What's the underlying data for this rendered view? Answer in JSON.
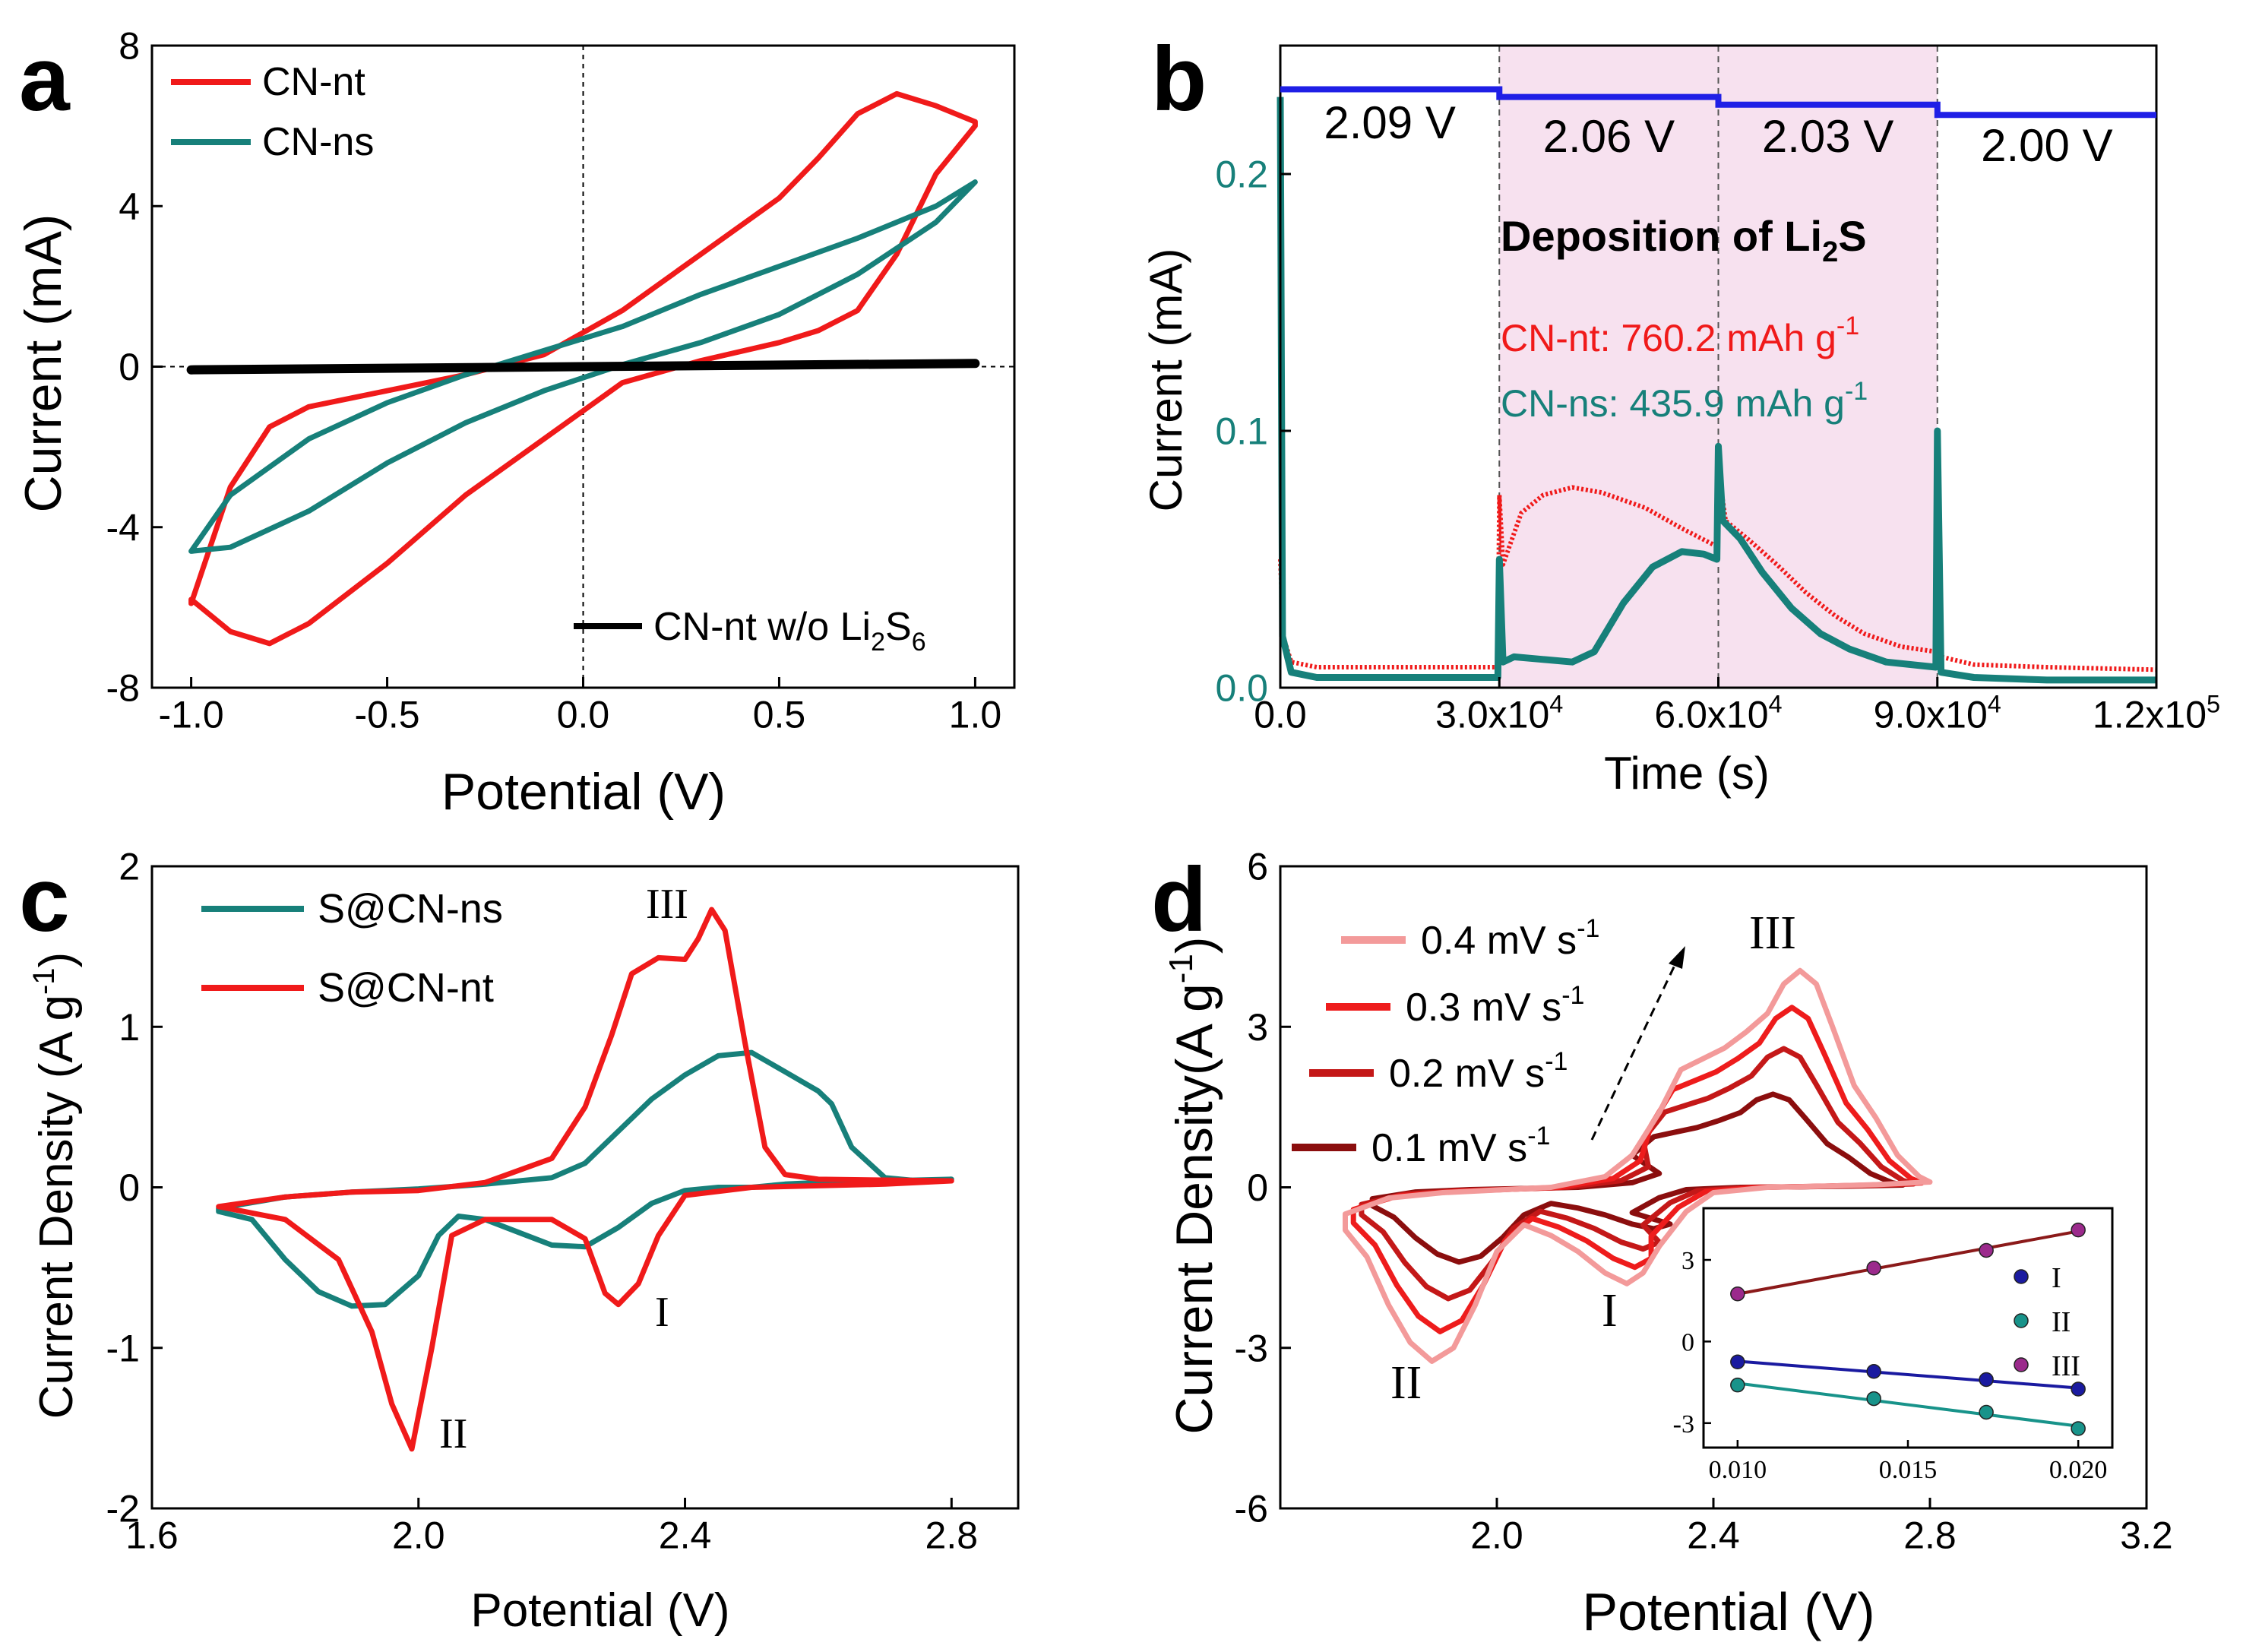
{
  "colors": {
    "red": "#f01a1a",
    "teal": "#17807a",
    "black": "#000000",
    "blue": "#1f1fe6",
    "pink_band": "#f7e1ef",
    "teal_text": "#17807a",
    "red_text": "#f01a1a",
    "scan04": "#f39a9a",
    "scan03": "#ee1c1c",
    "scan02": "#c41818",
    "scan01": "#8b0e0e",
    "inset_I": "#1a1aa0",
    "inset_II": "#18938a",
    "inset_III": "#9b2a8c",
    "inset_line_III": "#8b1a1a"
  },
  "chart_data": [
    {
      "panel": "a",
      "type": "line",
      "xlabel": "Potential (V)",
      "ylabel": "Current (mA)",
      "xlim": [
        -1.1,
        1.1
      ],
      "ylim": [
        -8,
        8
      ],
      "xticks": [
        -1.0,
        -0.5,
        0.0,
        0.5,
        1.0
      ],
      "xtick_labels": [
        "-1.0",
        "-0.5",
        "0.0",
        "0.5",
        "1.0"
      ],
      "yticks": [
        -8,
        -4,
        0,
        4,
        8
      ],
      "ytick_labels": [
        "-8",
        "-4",
        "0",
        "4",
        "8"
      ],
      "series": [
        {
          "name": "CN-nt",
          "color": "red",
          "closed": true,
          "x": [
            -1.0,
            -0.9,
            -0.8,
            -0.7,
            -0.5,
            -0.3,
            -0.1,
            0.1,
            0.3,
            0.5,
            0.6,
            0.7,
            0.8,
            0.9,
            1.0,
            1.0,
            0.9,
            0.8,
            0.7,
            0.6,
            0.5,
            0.3,
            0.1,
            -0.1,
            -0.3,
            -0.5,
            -0.7,
            -0.8,
            -0.9,
            -1.0
          ],
          "y": [
            -5.8,
            -6.6,
            -6.9,
            -6.4,
            -4.9,
            -3.2,
            -1.8,
            -0.4,
            0.15,
            0.6,
            0.9,
            1.4,
            2.8,
            4.8,
            6.0,
            6.1,
            6.5,
            6.8,
            6.3,
            5.2,
            4.2,
            2.8,
            1.4,
            0.3,
            -0.2,
            -0.6,
            -1.0,
            -1.5,
            -3.0,
            -5.9
          ]
        },
        {
          "name": "CN-ns",
          "color": "teal",
          "closed": true,
          "x": [
            -1.0,
            -0.9,
            -0.7,
            -0.5,
            -0.3,
            -0.1,
            0.1,
            0.3,
            0.5,
            0.7,
            0.9,
            1.0,
            0.9,
            0.7,
            0.5,
            0.3,
            0.1,
            -0.1,
            -0.3,
            -0.5,
            -0.7,
            -0.9,
            -1.0
          ],
          "y": [
            -4.6,
            -4.5,
            -3.6,
            -2.4,
            -1.4,
            -0.6,
            0.05,
            0.6,
            1.3,
            2.3,
            3.6,
            4.6,
            4.0,
            3.2,
            2.5,
            1.8,
            1.0,
            0.4,
            -0.2,
            -0.9,
            -1.8,
            -3.2,
            -4.6
          ]
        },
        {
          "name": "CN-nt w/o Li2S6",
          "color": "black",
          "closed": false,
          "x": [
            -1.0,
            0.0,
            1.0
          ],
          "y": [
            -0.08,
            0.0,
            0.08
          ]
        }
      ],
      "legend": {
        "entries": [
          "CN-nt",
          "CN-ns"
        ],
        "position": "top-left"
      },
      "annotation": {
        "main": "CN-nt w/o Li",
        "sub1": "2",
        "mid": "S",
        "sub2": "6"
      }
    },
    {
      "panel": "b",
      "type": "line",
      "xlabel": "Time (s)",
      "ylabel": "Current (mA)",
      "xlim": [
        0,
        120000
      ],
      "ylim": [
        0,
        0.25
      ],
      "xticks": [
        0,
        30000,
        60000,
        90000,
        120000
      ],
      "xtick_labels": [
        {
          "base": "0.0",
          "exp": ""
        },
        {
          "base": "3.0x10",
          "exp": "4"
        },
        {
          "base": "6.0x10",
          "exp": "4"
        },
        {
          "base": "9.0x10",
          "exp": "4"
        },
        {
          "base": "1.2x10",
          "exp": "5"
        }
      ],
      "yticks": [
        0.0,
        0.1,
        0.2
      ],
      "ytick_labels": [
        "0.0",
        "0.1",
        "0.2"
      ],
      "voltage_steps": [
        "2.09 V",
        "2.06 V",
        "2.03 V",
        "2.00 V"
      ],
      "voltage_level_y": [
        0.233,
        0.23,
        0.227,
        0.223
      ],
      "step_boundaries": [
        30000,
        60000,
        90000
      ],
      "shaded_range": [
        30000,
        90000
      ],
      "series": [
        {
          "name": "CN-nt",
          "color": "red",
          "x": [
            0,
            400,
            1500,
            5000,
            29800,
            30000,
            30500,
            33000,
            36000,
            40000,
            44000,
            50000,
            55000,
            59800,
            60000,
            61000,
            64000,
            68000,
            72000,
            76000,
            80000,
            85000,
            89800,
            90000,
            90500,
            95000,
            105000,
            120000
          ],
          "y": [
            0.05,
            0.02,
            0.01,
            0.008,
            0.008,
            0.075,
            0.048,
            0.068,
            0.075,
            0.078,
            0.076,
            0.07,
            0.062,
            0.055,
            0.085,
            0.065,
            0.058,
            0.048,
            0.037,
            0.028,
            0.021,
            0.016,
            0.014,
            0.095,
            0.012,
            0.009,
            0.008,
            0.007
          ]
        },
        {
          "name": "CN-ns",
          "color": "teal",
          "x": [
            0,
            300,
            1500,
            5000,
            29800,
            30000,
            30500,
            32000,
            36000,
            40000,
            43000,
            47000,
            51000,
            55000,
            58000,
            59800,
            60000,
            60600,
            63000,
            66000,
            70000,
            74000,
            78000,
            83000,
            89800,
            90000,
            90500,
            95000,
            105000,
            120000
          ],
          "y": [
            0.23,
            0.02,
            0.006,
            0.004,
            0.004,
            0.05,
            0.01,
            0.012,
            0.011,
            0.01,
            0.014,
            0.033,
            0.047,
            0.053,
            0.052,
            0.05,
            0.094,
            0.065,
            0.058,
            0.045,
            0.031,
            0.021,
            0.015,
            0.01,
            0.008,
            0.1,
            0.006,
            0.004,
            0.003,
            0.003
          ]
        }
      ],
      "deposition_title": {
        "main": "Deposition of Li",
        "sub": "2",
        "tail": "S"
      },
      "capacities": [
        {
          "label": "CN-nt:  760.2 mAh g",
          "sup": "-1",
          "color": "red"
        },
        {
          "label": "CN-ns: 435.9 mAh g",
          "sup": "-1",
          "color": "teal"
        }
      ]
    },
    {
      "panel": "c",
      "type": "line",
      "xlabel": "Potential (V)",
      "ylabel_main": "Current Density (A g",
      "ylabel_sup": "-1",
      "ylabel_tail": ")",
      "xlim": [
        1.6,
        2.9
      ],
      "ylim": [
        -2,
        2
      ],
      "xticks": [
        1.6,
        2.0,
        2.4,
        2.8
      ],
      "xtick_labels": [
        "1.6",
        "2.0",
        "2.4",
        "2.8"
      ],
      "yticks": [
        -2,
        -1,
        0,
        1,
        2
      ],
      "ytick_labels": [
        "-2",
        "-1",
        "0",
        "1",
        "2"
      ],
      "series": [
        {
          "name": "S@CN-ns",
          "color": "teal",
          "closed": true,
          "x": [
            1.7,
            1.75,
            1.8,
            1.85,
            1.9,
            1.95,
            2.0,
            2.03,
            2.06,
            2.1,
            2.15,
            2.2,
            2.25,
            2.3,
            2.35,
            2.4,
            2.45,
            2.5,
            2.55,
            2.6,
            2.65,
            2.7,
            2.8,
            2.75,
            2.7,
            2.65,
            2.62,
            2.6,
            2.55,
            2.5,
            2.45,
            2.4,
            2.35,
            2.3,
            2.25,
            2.2,
            2.1,
            2.0,
            1.9,
            1.8,
            1.7
          ],
          "y": [
            -0.15,
            -0.2,
            -0.45,
            -0.65,
            -0.74,
            -0.73,
            -0.55,
            -0.3,
            -0.18,
            -0.2,
            -0.28,
            -0.36,
            -0.37,
            -0.25,
            -0.1,
            -0.02,
            0.0,
            0.0,
            0.02,
            0.03,
            0.04,
            0.04,
            0.05,
            0.04,
            0.06,
            0.25,
            0.52,
            0.6,
            0.72,
            0.84,
            0.82,
            0.7,
            0.55,
            0.35,
            0.15,
            0.06,
            0.02,
            -0.01,
            -0.03,
            -0.06,
            -0.13
          ]
        },
        {
          "name": "S@CN-nt",
          "color": "red",
          "closed": true,
          "x": [
            1.7,
            1.8,
            1.88,
            1.93,
            1.96,
            1.99,
            2.02,
            2.05,
            2.1,
            2.2,
            2.25,
            2.28,
            2.3,
            2.33,
            2.36,
            2.4,
            2.5,
            2.6,
            2.7,
            2.8,
            2.6,
            2.55,
            2.52,
            2.49,
            2.46,
            2.44,
            2.42,
            2.4,
            2.36,
            2.32,
            2.29,
            2.25,
            2.2,
            2.1,
            2.0,
            1.9,
            1.8,
            1.7
          ],
          "y": [
            -0.12,
            -0.2,
            -0.45,
            -0.9,
            -1.35,
            -1.63,
            -1.0,
            -0.3,
            -0.2,
            -0.2,
            -0.32,
            -0.66,
            -0.73,
            -0.6,
            -0.3,
            -0.05,
            0.0,
            0.01,
            0.02,
            0.04,
            0.05,
            0.08,
            0.25,
            0.9,
            1.6,
            1.73,
            1.55,
            1.42,
            1.43,
            1.33,
            0.95,
            0.5,
            0.18,
            0.03,
            -0.02,
            -0.03,
            -0.06,
            -0.12
          ]
        }
      ],
      "legend": {
        "entries": [
          "S@CN-ns",
          "S@CN-nt"
        ],
        "position": "top-left"
      },
      "peak_labels": [
        "III",
        "I",
        "II"
      ]
    },
    {
      "panel": "d",
      "type": "line",
      "xlabel": "Potential (V)",
      "ylabel_main": "Current Density(A g",
      "ylabel_sup": "-1",
      "ylabel_tail": ")",
      "xlim": [
        1.6,
        3.2
      ],
      "ylim": [
        -6,
        6
      ],
      "xticks": [
        2.0,
        2.4,
        2.8,
        3.2
      ],
      "xtick_labels": [
        "2.0",
        "2.4",
        "2.8",
        "3.2"
      ],
      "yticks": [
        -6,
        -3,
        0,
        3,
        6
      ],
      "ytick_labels": [
        "-6",
        "-3",
        "0",
        "3",
        "6"
      ],
      "series": [
        {
          "name": "0.4 mV s-1",
          "label": "0.4 mV s",
          "sup": "-1",
          "color": "scan04",
          "scale": 1.0,
          "shift": 0.0
        },
        {
          "name": "0.3 mV s-1",
          "label": "0.3 mV s",
          "sup": "-1",
          "color": "scan03",
          "scale": 0.83,
          "shift": 0.015
        },
        {
          "name": "0.2 mV s-1",
          "label": "0.2 mV s",
          "sup": "-1",
          "color": "scan02",
          "scale": 0.64,
          "shift": 0.03
        },
        {
          "name": "0.1 mV s-1",
          "label": "0.1 mV s",
          "sup": "-1",
          "color": "scan01",
          "scale": 0.43,
          "shift": 0.05
        }
      ],
      "base_loop": {
        "x": [
          1.72,
          1.76,
          1.8,
          1.84,
          1.88,
          1.92,
          1.96,
          2.0,
          2.05,
          2.1,
          2.15,
          2.2,
          2.24,
          2.27,
          2.3,
          2.35,
          2.4,
          2.5,
          2.6,
          2.7,
          2.8,
          2.78,
          2.74,
          2.7,
          2.66,
          2.62,
          2.59,
          2.56,
          2.53,
          2.5,
          2.46,
          2.42,
          2.38,
          2.34,
          2.3,
          2.25,
          2.2,
          2.1,
          2.0,
          1.9,
          1.8,
          1.72
        ],
        "y": [
          -0.8,
          -1.3,
          -2.2,
          -2.9,
          -3.25,
          -3.0,
          -2.2,
          -1.2,
          -0.7,
          -0.9,
          -1.2,
          -1.6,
          -1.8,
          -1.6,
          -1.1,
          -0.45,
          -0.1,
          0.0,
          0.02,
          0.05,
          0.1,
          0.2,
          0.6,
          1.3,
          1.9,
          3.0,
          3.8,
          4.05,
          3.8,
          3.25,
          2.9,
          2.6,
          2.4,
          2.2,
          1.4,
          0.6,
          0.2,
          0.0,
          -0.05,
          -0.1,
          -0.2,
          -0.5
        ]
      },
      "peak_labels": [
        "III",
        "I",
        "II"
      ],
      "inset": {
        "xlim": [
          0.009,
          0.021
        ],
        "ylim": [
          -3.9,
          4.9
        ],
        "xticks": [
          0.01,
          0.015,
          0.02
        ],
        "xtick_labels": [
          "0.010",
          "0.015",
          "0.020"
        ],
        "yticks": [
          -3,
          0,
          3
        ],
        "ytick_labels": [
          "-3",
          "0",
          "3"
        ],
        "series": [
          {
            "name": "I",
            "color": "inset_I",
            "x": [
              0.01,
              0.014,
              0.0173,
              0.02
            ],
            "y": [
              -0.75,
              -1.1,
              -1.4,
              -1.75
            ]
          },
          {
            "name": "II",
            "color": "inset_II",
            "x": [
              0.01,
              0.014,
              0.0173,
              0.02
            ],
            "y": [
              -1.6,
              -2.1,
              -2.6,
              -3.2
            ]
          },
          {
            "name": "III",
            "color": "inset_III",
            "x": [
              0.01,
              0.014,
              0.0173,
              0.02
            ],
            "y": [
              1.75,
              2.7,
              3.35,
              4.1
            ]
          }
        ],
        "legend": [
          "I",
          "II",
          "III"
        ]
      }
    }
  ],
  "panel_labels": [
    "a",
    "b",
    "c",
    "d"
  ]
}
